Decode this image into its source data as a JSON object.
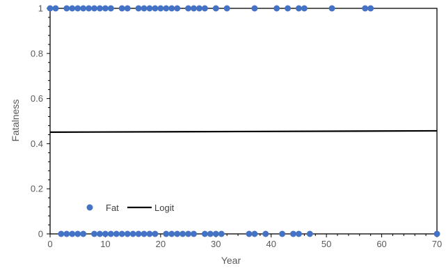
{
  "chart_data": {
    "type": "scatter",
    "xlabel": "Year",
    "ylabel": "Fatalness",
    "xlim": [
      0,
      70
    ],
    "ylim": [
      0,
      1
    ],
    "xticks": [
      "0",
      "10",
      "20",
      "30",
      "40",
      "50",
      "60",
      "70"
    ],
    "yticks": [
      "0",
      "0.2",
      "0.4",
      "0.6",
      "0.8",
      "1"
    ],
    "grid": false,
    "legend_position": "lower-left",
    "series": [
      {
        "name": "Fat",
        "kind": "scatter",
        "color": "#4472C4",
        "x": [
          0,
          1,
          3,
          4,
          5,
          6,
          7,
          8,
          9,
          10,
          11,
          13,
          14,
          16,
          17,
          18,
          19,
          20,
          21,
          22,
          23,
          25,
          26,
          27,
          28,
          30,
          32,
          37,
          41,
          43,
          45,
          46,
          51,
          57,
          58,
          2,
          3,
          4,
          5,
          6,
          8,
          9,
          10,
          11,
          12,
          13,
          14,
          15,
          16,
          17,
          18,
          19,
          21,
          22,
          23,
          24,
          25,
          26,
          28,
          29,
          30,
          31,
          36,
          37,
          39,
          42,
          44,
          45,
          47,
          70
        ],
        "y": [
          1,
          1,
          1,
          1,
          1,
          1,
          1,
          1,
          1,
          1,
          1,
          1,
          1,
          1,
          1,
          1,
          1,
          1,
          1,
          1,
          1,
          1,
          1,
          1,
          1,
          1,
          1,
          1,
          1,
          1,
          1,
          1,
          1,
          1,
          1,
          0,
          0,
          0,
          0,
          0,
          0,
          0,
          0,
          0,
          0,
          0,
          0,
          0,
          0,
          0,
          0,
          0,
          0,
          0,
          0,
          0,
          0,
          0,
          0,
          0,
          0,
          0,
          0,
          0,
          0,
          0,
          0,
          0,
          0,
          0
        ]
      },
      {
        "name": "Logit",
        "kind": "line",
        "color": "#000000",
        "x": [
          0,
          70
        ],
        "y": [
          0.451,
          0.457
        ]
      }
    ]
  }
}
